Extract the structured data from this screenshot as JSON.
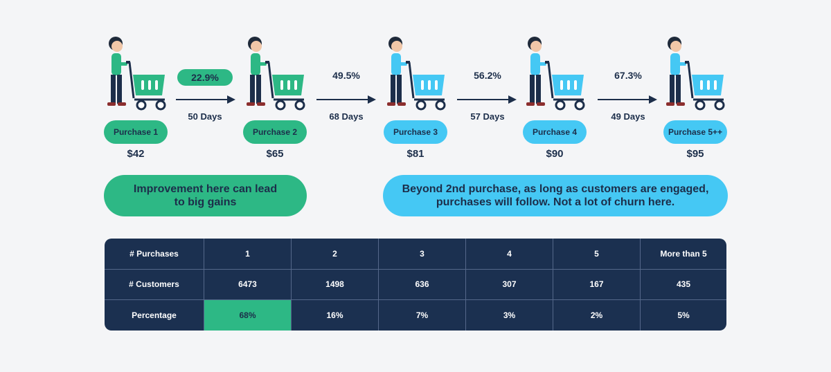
{
  "colors": {
    "green": "#2db885",
    "blue": "#45c8f4",
    "navy": "#1b3050",
    "background": "#f4f5f7"
  },
  "stages": [
    {
      "label": "Purchase 1",
      "price": "$42",
      "color": "green"
    },
    {
      "label": "Purchase 2",
      "price": "$65",
      "color": "green"
    },
    {
      "label": "Purchase 3",
      "price": "$81",
      "color": "blue"
    },
    {
      "label": "Purchase 4",
      "price": "$90",
      "color": "blue"
    },
    {
      "label": "Purchase 5++",
      "price": "$95",
      "color": "blue"
    }
  ],
  "transitions": [
    {
      "rate": "22.9%",
      "days": "50 Days"
    },
    {
      "rate": "49.5%",
      "days": "68 Days"
    },
    {
      "rate": "56.2%",
      "days": "57 Days"
    },
    {
      "rate": "67.3%",
      "days": "49 Days"
    }
  ],
  "callouts": {
    "left": [
      "Improvement here can lead",
      "to big gains"
    ],
    "right": [
      "Beyond 2nd purchase, as long as customers are engaged,",
      "purchases will follow. Not a lot of churn here."
    ]
  },
  "table": {
    "rows": [
      [
        "# Purchases",
        "1",
        "2",
        "3",
        "4",
        "5",
        "More than 5"
      ],
      [
        "# Customers",
        "6473",
        "1498",
        "636",
        "307",
        "167",
        "435"
      ],
      [
        "Percentage",
        "68%",
        "16%",
        "7%",
        "3%",
        "2%",
        "5%"
      ]
    ]
  }
}
